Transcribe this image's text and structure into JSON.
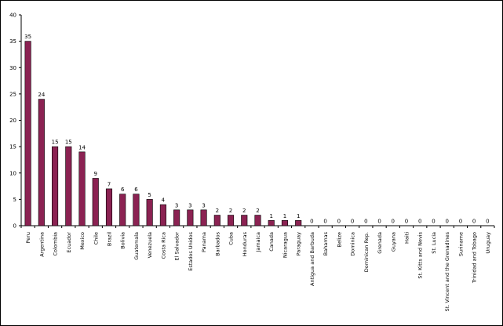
{
  "chart_data": {
    "type": "bar",
    "categories": [
      "Peru",
      "Argentina",
      "Colombia",
      "Ecuador",
      "Mexico",
      "Chile",
      "Brazil",
      "Bolivia",
      "Guatemala",
      "Venezuela",
      "Costa Rica",
      "El Salvador",
      "Estados Unidos",
      "Panama",
      "Barbados",
      "Cuba",
      "Honduras",
      "Jamaica",
      "Canada",
      "Nicaragua",
      "Paraguay",
      "Antigua and Barbuda",
      "Bahamas",
      "Belize",
      "Dominica",
      "Dominican Rep.",
      "Grenada",
      "Guyana",
      "Haiti",
      "St. Kitts and Nevis",
      "St. Lucia",
      "St. Vincent and the Grenadines",
      "Suriname",
      "Trinidad and Tobago",
      "Uruguay"
    ],
    "values": [
      35,
      24,
      15,
      15,
      14,
      9,
      7,
      6,
      6,
      5,
      4,
      3,
      3,
      3,
      2,
      2,
      2,
      2,
      1,
      1,
      1,
      0,
      0,
      0,
      0,
      0,
      0,
      0,
      0,
      0,
      0,
      0,
      0,
      0,
      0
    ],
    "ylim": [
      0,
      40
    ],
    "yticks": [
      0,
      5,
      10,
      15,
      20,
      25,
      30,
      35,
      40
    ],
    "colors": {
      "bar": "#8B2252",
      "bar_edge": "#000000"
    }
  }
}
